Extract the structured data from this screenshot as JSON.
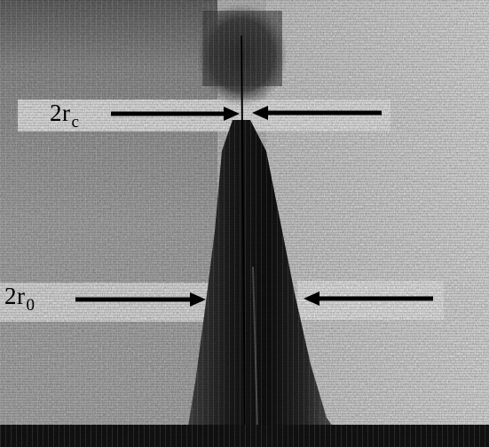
{
  "annotations": {
    "rc": {
      "prefix": "2r",
      "subscript": "c"
    },
    "r0": {
      "prefix": "2r",
      "subscript": "0"
    }
  },
  "colors": {
    "background_light": "#f2f2f2",
    "background_mid": "#bdbdbd",
    "background_dark": "#6e6e6e",
    "plume": "#1a1a1a",
    "arrow": "#000000"
  },
  "icons": {
    "arrows": "horizontal-arrow-pair"
  }
}
